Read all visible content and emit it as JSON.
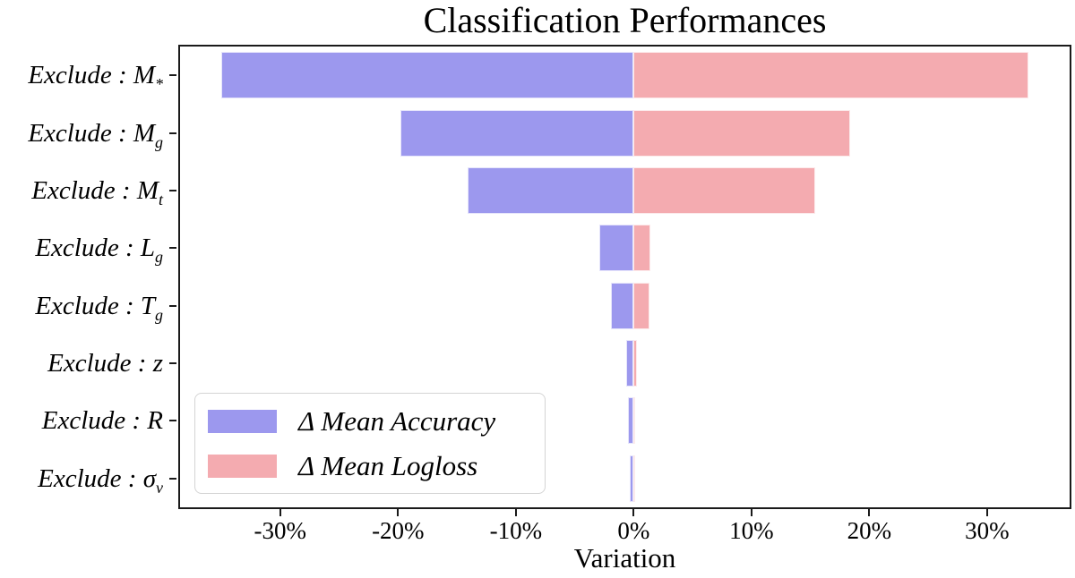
{
  "chart_data": {
    "type": "bar",
    "orientation": "horizontal",
    "title": "Classification Performances",
    "xlabel": "Variation",
    "axis_color": "#1a1a1a",
    "background": "#ffffff",
    "categories": [
      {
        "base": "Exclude : M",
        "sub": "*"
      },
      {
        "base": "Exclude : M",
        "sub": "g"
      },
      {
        "base": "Exclude : M",
        "sub": "t"
      },
      {
        "base": "Exclude : L",
        "sub": "g"
      },
      {
        "base": "Exclude : T",
        "sub": "g"
      },
      {
        "base": "Exclude : z",
        "sub": ""
      },
      {
        "base": "Exclude : R",
        "sub": ""
      },
      {
        "base": "Exclude : σ",
        "sub": "v"
      }
    ],
    "series": [
      {
        "name": "Δ Mean Accuracy",
        "color": "#9C98EE",
        "values": [
          -35.0,
          -19.8,
          -14.1,
          -2.9,
          -1.9,
          -0.6,
          -0.45,
          -0.3
        ]
      },
      {
        "name": "Δ Mean Logloss",
        "color": "#F4ABB0",
        "values": [
          33.5,
          18.4,
          15.4,
          1.4,
          1.35,
          0.25,
          0.15,
          0.1
        ]
      }
    ],
    "xlim": [
      -38.5,
      37.0
    ],
    "xticks": [
      {
        "value": -30,
        "label": "-30%"
      },
      {
        "value": -20,
        "label": "-20%"
      },
      {
        "value": -10,
        "label": "-10%"
      },
      {
        "value": 0,
        "label": "0%"
      },
      {
        "value": 10,
        "label": "10%"
      },
      {
        "value": 20,
        "label": "20%"
      },
      {
        "value": 30,
        "label": "30%"
      }
    ],
    "legend": {
      "position": "lower-left"
    },
    "grid": false
  }
}
